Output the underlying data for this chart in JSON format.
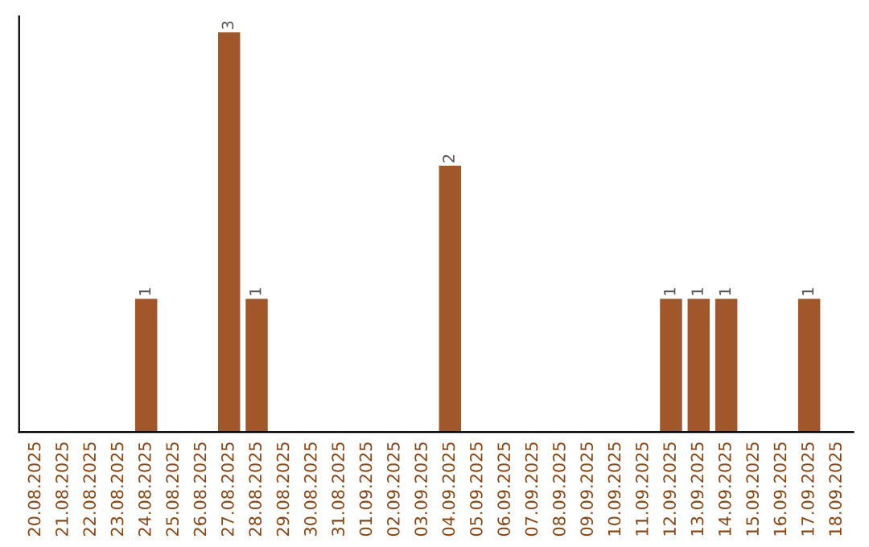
{
  "chart_data": {
    "type": "bar",
    "categories": [
      "20.08.2025",
      "21.08.2025",
      "22.08.2025",
      "23.08.2025",
      "24.08.2025",
      "25.08.2025",
      "26.08.2025",
      "27.08.2025",
      "28.08.2025",
      "29.08.2025",
      "30.08.2025",
      "31.08.2025",
      "01.09.2025",
      "02.09.2025",
      "03.09.2025",
      "04.09.2025",
      "05.09.2025",
      "06.09.2025",
      "07.09.2025",
      "08.09.2025",
      "09.09.2025",
      "10.09.2025",
      "11.09.2025",
      "12.09.2025",
      "13.09.2025",
      "14.09.2025",
      "15.09.2025",
      "16.09.2025",
      "17.09.2025",
      "18.09.2025"
    ],
    "values": [
      0,
      0,
      0,
      0,
      1,
      0,
      0,
      3,
      1,
      0,
      0,
      0,
      0,
      0,
      0,
      2,
      0,
      0,
      0,
      0,
      0,
      0,
      0,
      1,
      1,
      1,
      0,
      0,
      1,
      0
    ],
    "value_labels": [
      null,
      null,
      null,
      null,
      "1",
      null,
      null,
      "3",
      "1",
      null,
      null,
      null,
      null,
      null,
      null,
      "2",
      null,
      null,
      null,
      null,
      null,
      null,
      null,
      "1",
      "1",
      "1",
      null,
      null,
      "1",
      null
    ],
    "color": "#a0572a",
    "grid": false,
    "legend": false
  }
}
